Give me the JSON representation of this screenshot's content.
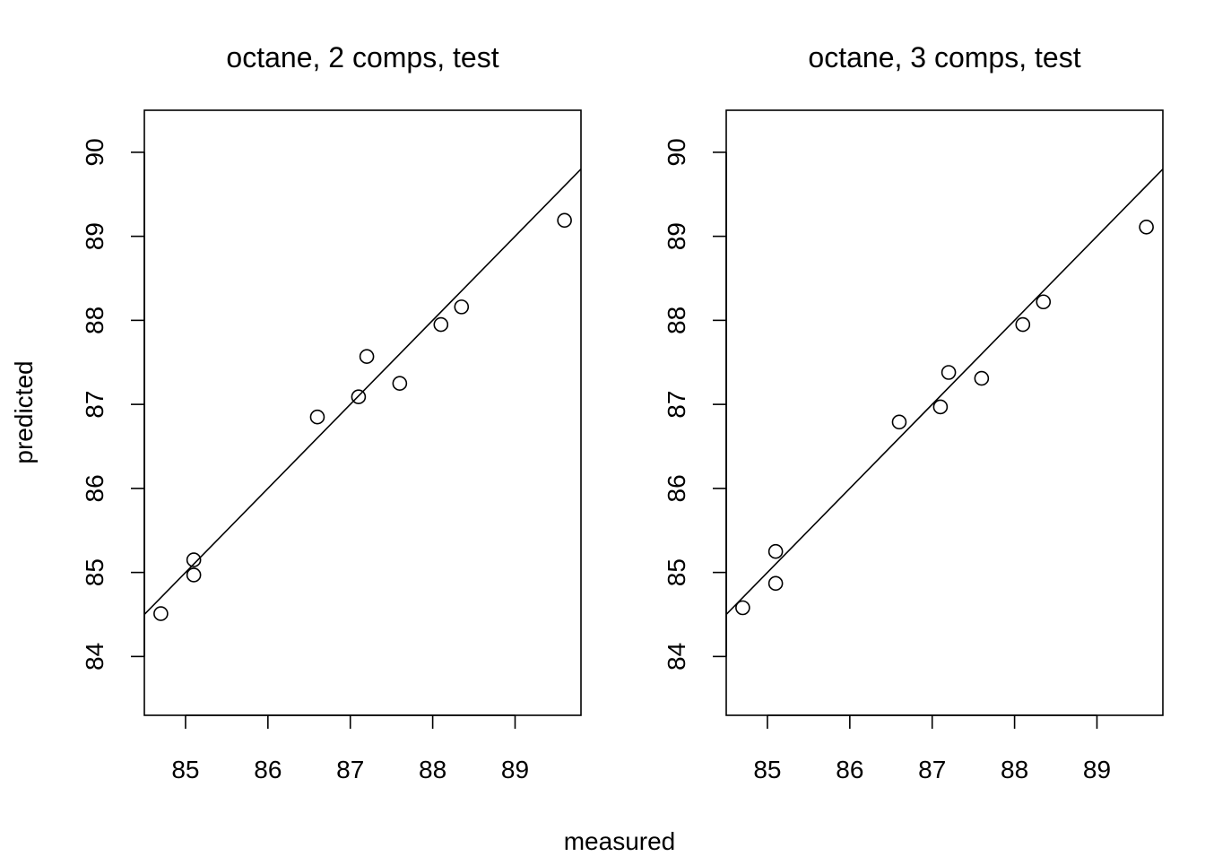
{
  "figure": {
    "xlabel": "measured",
    "ylabel": "predicted"
  },
  "chart_data": [
    {
      "type": "scatter",
      "title": "octane, 2 comps, test",
      "xlabel": "measured",
      "ylabel": "predicted",
      "xlim": [
        84.5,
        89.8
      ],
      "ylim": [
        83.3,
        90.5
      ],
      "x_ticks": [
        85,
        86,
        87,
        88,
        89
      ],
      "y_ticks": [
        84,
        85,
        86,
        87,
        88,
        89,
        90
      ],
      "grid": false,
      "reference_line": "y = x",
      "points": [
        {
          "x": 84.7,
          "y": 84.51
        },
        {
          "x": 85.1,
          "y": 84.97
        },
        {
          "x": 85.1,
          "y": 85.15
        },
        {
          "x": 86.6,
          "y": 86.85
        },
        {
          "x": 87.1,
          "y": 87.09
        },
        {
          "x": 87.2,
          "y": 87.57
        },
        {
          "x": 87.6,
          "y": 87.25
        },
        {
          "x": 88.1,
          "y": 87.95
        },
        {
          "x": 88.35,
          "y": 88.16
        },
        {
          "x": 89.6,
          "y": 89.19
        }
      ]
    },
    {
      "type": "scatter",
      "title": "octane, 3 comps, test",
      "xlabel": "measured",
      "ylabel": "predicted",
      "xlim": [
        84.5,
        89.8
      ],
      "ylim": [
        83.3,
        90.5
      ],
      "x_ticks": [
        85,
        86,
        87,
        88,
        89
      ],
      "y_ticks": [
        84,
        85,
        86,
        87,
        88,
        89,
        90
      ],
      "grid": false,
      "reference_line": "y = x",
      "points": [
        {
          "x": 84.7,
          "y": 84.58
        },
        {
          "x": 85.1,
          "y": 84.87
        },
        {
          "x": 85.1,
          "y": 85.25
        },
        {
          "x": 86.6,
          "y": 86.79
        },
        {
          "x": 87.1,
          "y": 86.97
        },
        {
          "x": 87.2,
          "y": 87.38
        },
        {
          "x": 87.6,
          "y": 87.31
        },
        {
          "x": 88.1,
          "y": 87.95
        },
        {
          "x": 88.35,
          "y": 88.22
        },
        {
          "x": 89.6,
          "y": 89.11
        }
      ]
    }
  ]
}
